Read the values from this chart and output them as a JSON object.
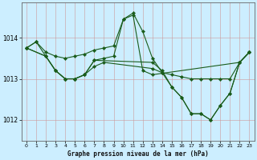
{
  "title": "Graphe pression niveau de la mer (hPa)",
  "bg_color": "#cceeff",
  "grid_color_major": "#aabbcc",
  "grid_color_minor": "#ddeeff",
  "line_color": "#1a5c1a",
  "xlim": [
    -0.5,
    23.5
  ],
  "ylim": [
    1011.5,
    1014.85
  ],
  "yticks": [
    1012,
    1013,
    1014
  ],
  "xticks": [
    0,
    1,
    2,
    3,
    4,
    5,
    6,
    7,
    8,
    9,
    10,
    11,
    12,
    13,
    14,
    15,
    16,
    17,
    18,
    19,
    20,
    21,
    22,
    23
  ],
  "lines": [
    {
      "x": [
        0,
        1,
        2,
        3,
        4,
        5,
        6,
        7,
        8,
        9,
        10,
        11,
        12,
        13,
        14,
        15,
        16,
        17,
        18,
        19,
        20,
        21,
        22,
        23
      ],
      "y": [
        1013.75,
        1013.9,
        1013.65,
        1013.55,
        1013.5,
        1013.55,
        1013.6,
        1013.7,
        1013.75,
        1013.8,
        1014.45,
        1014.6,
        1014.15,
        1013.5,
        1013.15,
        1012.8,
        1012.55,
        1012.15,
        1012.15,
        1012.0,
        1012.35,
        1012.65,
        1013.4,
        1013.65
      ]
    },
    {
      "x": [
        0,
        1,
        2,
        3,
        4,
        5,
        6,
        7,
        8,
        9,
        10,
        11,
        12,
        13,
        22,
        23
      ],
      "y": [
        1013.75,
        1013.9,
        1013.55,
        1013.2,
        1013.0,
        1013.0,
        1013.1,
        1013.45,
        1013.5,
        1013.55,
        1014.45,
        1014.55,
        1013.2,
        1013.1,
        1013.4,
        1013.65
      ]
    },
    {
      "x": [
        0,
        2,
        3,
        4,
        5,
        6,
        7,
        8,
        13,
        14,
        15,
        16,
        17,
        18,
        19,
        20,
        21,
        22,
        23
      ],
      "y": [
        1013.75,
        1013.55,
        1013.2,
        1013.0,
        1013.0,
        1013.1,
        1013.3,
        1013.4,
        1013.25,
        1013.15,
        1013.1,
        1013.05,
        1013.0,
        1013.0,
        1013.0,
        1013.0,
        1013.0,
        1013.4,
        1013.65
      ]
    },
    {
      "x": [
        0,
        2,
        3,
        4,
        5,
        6,
        7,
        13,
        14,
        15,
        16,
        17,
        18,
        19,
        20,
        21,
        22,
        23
      ],
      "y": [
        1013.75,
        1013.55,
        1013.2,
        1013.0,
        1013.0,
        1013.1,
        1013.45,
        1013.4,
        1013.2,
        1012.8,
        1012.55,
        1012.15,
        1012.15,
        1012.0,
        1012.35,
        1012.65,
        1013.4,
        1013.65
      ]
    }
  ]
}
